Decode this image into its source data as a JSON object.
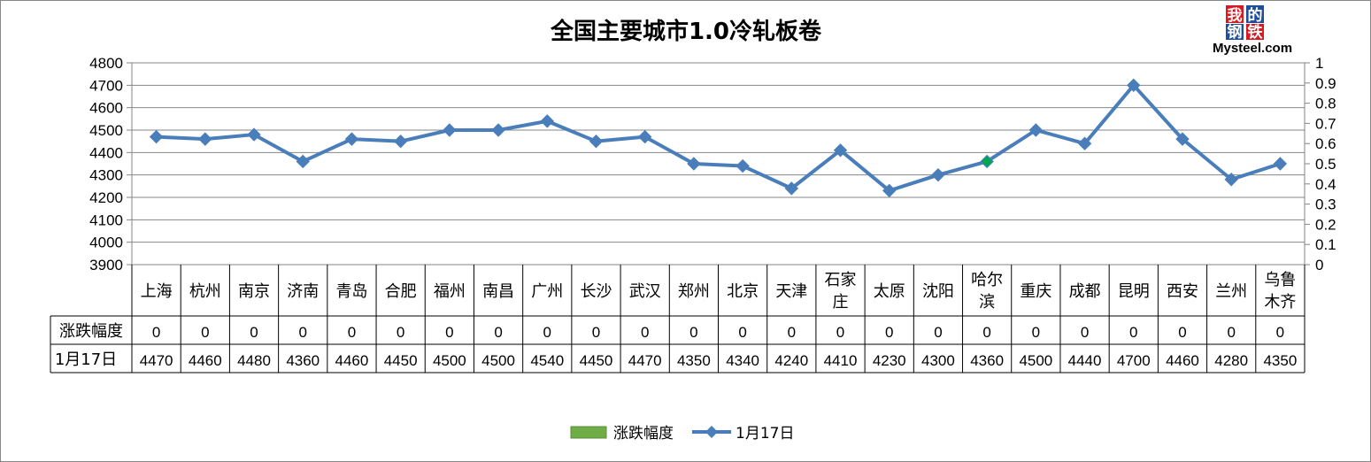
{
  "chart_data": {
    "type": "line",
    "title": "全国主要城市1.0冷轧板卷",
    "categories": [
      "上海",
      "杭州",
      "南京",
      "济南",
      "青岛",
      "合肥",
      "福州",
      "南昌",
      "广州",
      "长沙",
      "武汉",
      "郑州",
      "北京",
      "天津",
      "石家庄",
      "太原",
      "沈阳",
      "哈尔滨",
      "重庆",
      "成都",
      "昆明",
      "西安",
      "兰州",
      "乌鲁木齐"
    ],
    "category_lines": [
      [
        "上海"
      ],
      [
        "杭州"
      ],
      [
        "南京"
      ],
      [
        "济南"
      ],
      [
        "青岛"
      ],
      [
        "合肥"
      ],
      [
        "福州"
      ],
      [
        "南昌"
      ],
      [
        "广州"
      ],
      [
        "长沙"
      ],
      [
        "武汉"
      ],
      [
        "郑州"
      ],
      [
        "北京"
      ],
      [
        "天津"
      ],
      [
        "石家",
        "庄"
      ],
      [
        "太原"
      ],
      [
        "沈阳"
      ],
      [
        "哈尔",
        "滨"
      ],
      [
        "重庆"
      ],
      [
        "成都"
      ],
      [
        "昆明"
      ],
      [
        "西安"
      ],
      [
        "兰州"
      ],
      [
        "乌鲁",
        "木齐"
      ]
    ],
    "series": [
      {
        "name": "涨跌幅度",
        "type": "bar",
        "axis": "right",
        "color": "#70ad47",
        "values": [
          0,
          0,
          0,
          0,
          0,
          0,
          0,
          0,
          0,
          0,
          0,
          0,
          0,
          0,
          0,
          0,
          0,
          0,
          0,
          0,
          0,
          0,
          0,
          0
        ]
      },
      {
        "name": "1月17日",
        "type": "line",
        "axis": "left",
        "color": "#4a7ebb",
        "values": [
          4470,
          4460,
          4480,
          4360,
          4460,
          4450,
          4500,
          4500,
          4540,
          4450,
          4470,
          4350,
          4340,
          4240,
          4410,
          4230,
          4300,
          4360,
          4500,
          4440,
          4700,
          4460,
          4280,
          4350
        ]
      }
    ],
    "ylim": [
      3900,
      4800
    ],
    "yticks": [
      "4800",
      "4700",
      "4600",
      "4500",
      "4400",
      "4300",
      "4200",
      "4100",
      "4000",
      "3900"
    ],
    "y2lim": [
      0,
      1
    ],
    "y2ticks": [
      "1",
      "0.9",
      "0.8",
      "0.7",
      "0.6",
      "0.5",
      "0.4",
      "0.3",
      "0.2",
      "0.1",
      "0"
    ],
    "highlight_index": 17,
    "highlight_color": "#00a651",
    "grid": true,
    "legend_position": "bottom",
    "data_table": true
  },
  "logo": {
    "chars": [
      "我",
      "的",
      "钢",
      "铁"
    ],
    "text": "Mysteel.com"
  }
}
